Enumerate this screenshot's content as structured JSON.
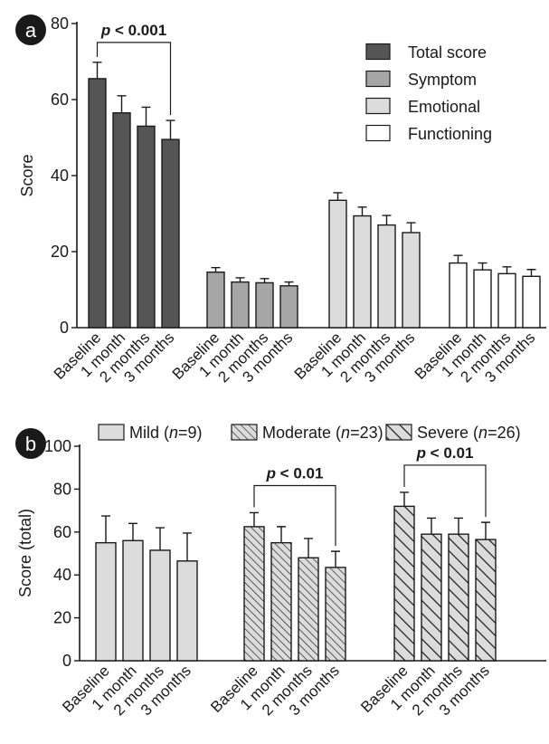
{
  "chart_data": [
    {
      "type": "bar",
      "panel_label": "a",
      "ylabel": "Score",
      "ylim": [
        0,
        80
      ],
      "yticks": [
        0,
        20,
        40,
        60,
        80
      ],
      "grid": false,
      "legend_position": "top-right",
      "groups": [
        {
          "name": "Total score",
          "color": "#555555",
          "categories": [
            "Baseline",
            "1 month",
            "2 months",
            "3 months"
          ],
          "values": [
            65.5,
            56.5,
            53,
            49.5
          ],
          "errors": [
            4.3,
            4.5,
            5,
            5
          ],
          "significance": {
            "text": "p < 0.001",
            "from": 0,
            "to": 3
          }
        },
        {
          "name": "Symptom",
          "color": "#a6a6a6",
          "categories": [
            "Baseline",
            "1 month",
            "2 months",
            "3 months"
          ],
          "values": [
            14.6,
            12,
            11.8,
            11
          ],
          "errors": [
            1.2,
            1.1,
            1.1,
            1
          ],
          "significance": null
        },
        {
          "name": "Emotional",
          "color": "#dcdcdc",
          "categories": [
            "Baseline",
            "1 month",
            "2 months",
            "3 months"
          ],
          "values": [
            33.5,
            29.4,
            27,
            25
          ],
          "errors": [
            2,
            2.3,
            2.5,
            2.6
          ],
          "significance": null
        },
        {
          "name": "Functioning",
          "color": "#ffffff",
          "categories": [
            "Baseline",
            "1 month",
            "2 months",
            "3 months"
          ],
          "values": [
            17,
            15.2,
            14.2,
            13.5
          ],
          "errors": [
            2,
            1.8,
            1.8,
            1.8
          ],
          "significance": null
        }
      ]
    },
    {
      "type": "bar",
      "panel_label": "b",
      "ylabel": "Score (total)",
      "ylim": [
        0,
        100
      ],
      "yticks": [
        0,
        20,
        40,
        60,
        80,
        100
      ],
      "grid": false,
      "legend_position": "top",
      "groups": [
        {
          "name": "Mild",
          "n_label": "n",
          "n_value": "=9)",
          "pattern": "solid",
          "color": "#dcdcdc",
          "categories": [
            "Baseline",
            "1 month",
            "2 months",
            "3 months"
          ],
          "values": [
            55,
            56,
            51.5,
            46.5
          ],
          "errors": [
            12.5,
            8,
            10.5,
            13
          ],
          "significance": null
        },
        {
          "name": "Moderate",
          "n_label": "n",
          "n_value": "=23)",
          "pattern": "dense-hatch",
          "color": "#dcdcdc",
          "categories": [
            "Baseline",
            "1 month",
            "2 months",
            "3 months"
          ],
          "values": [
            62.5,
            55,
            48,
            43.5
          ],
          "errors": [
            6.5,
            7.5,
            9,
            7.5
          ],
          "significance": {
            "text": "p < 0.01",
            "from": 0,
            "to": 3
          }
        },
        {
          "name": "Severe",
          "n_label": "n",
          "n_value": "=26)",
          "pattern": "wide-hatch",
          "color": "#dcdcdc",
          "categories": [
            "Baseline",
            "1 month",
            "2 months",
            "3 months"
          ],
          "values": [
            72,
            59,
            59,
            56.5
          ],
          "errors": [
            6.5,
            7.5,
            7.5,
            8
          ],
          "significance": {
            "text": "p < 0.01",
            "from": 0,
            "to": 3
          }
        }
      ]
    }
  ]
}
